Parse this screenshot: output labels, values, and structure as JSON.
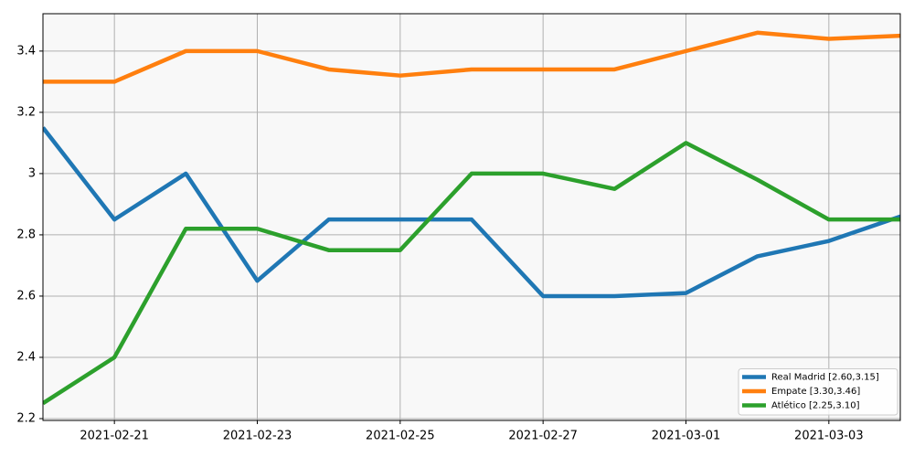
{
  "chart_data": {
    "type": "line",
    "x": [
      "2021-02-20",
      "2021-02-21",
      "2021-02-22",
      "2021-02-23",
      "2021-02-24",
      "2021-02-25",
      "2021-02-26",
      "2021-02-27",
      "2021-02-28",
      "2021-03-01",
      "2021-03-02",
      "2021-03-03",
      "2021-03-04"
    ],
    "series": [
      {
        "name": "Real Madrid [2.60,3.15]",
        "color": "#1f77b4",
        "values": [
          3.15,
          2.85,
          3.0,
          2.65,
          2.85,
          2.85,
          2.85,
          2.6,
          2.6,
          2.61,
          2.73,
          2.78,
          2.86
        ]
      },
      {
        "name": "Empate [3.30,3.46]",
        "color": "#ff7f0e",
        "values": [
          3.3,
          3.3,
          3.4,
          3.4,
          3.34,
          3.32,
          3.34,
          3.34,
          3.34,
          3.4,
          3.46,
          3.44,
          3.45
        ]
      },
      {
        "name": "Atlético [2.25,3.10]",
        "color": "#2ca02c",
        "values": [
          2.25,
          2.4,
          2.82,
          2.82,
          2.75,
          2.75,
          3.0,
          3.0,
          2.95,
          3.1,
          2.98,
          2.85,
          2.85
        ]
      }
    ],
    "xlim": [
      "2021-02-20",
      "2021-03-04"
    ],
    "xticks": [
      "2021-02-21",
      "2021-02-23",
      "2021-02-25",
      "2021-02-27",
      "2021-03-01",
      "2021-03-03"
    ],
    "ylim": [
      2.194,
      3.522
    ],
    "yticks": [
      2.2,
      2.4,
      2.6,
      2.8,
      3.0,
      3.2,
      3.4
    ],
    "grid": true,
    "legend": "lower right"
  }
}
